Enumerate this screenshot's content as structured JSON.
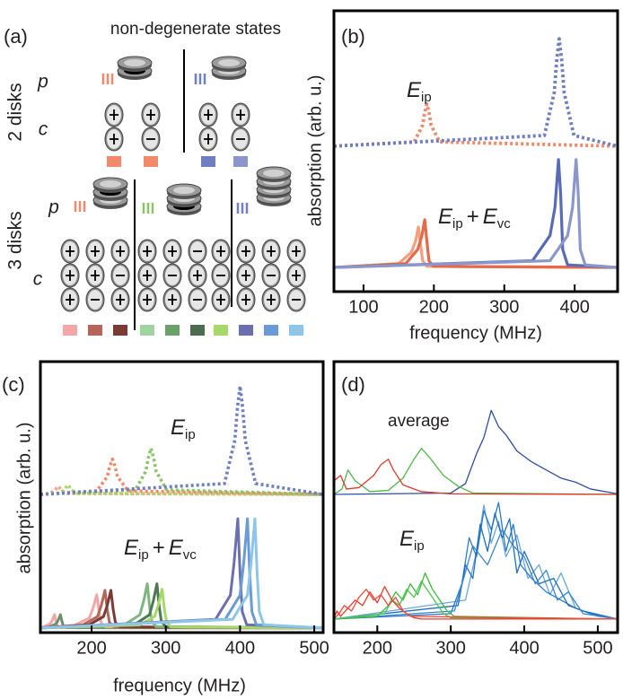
{
  "panel_a": {
    "label": "(a)",
    "title": "non-degenerate states",
    "rows": [
      "2 disks",
      "3 disks"
    ],
    "p": "p",
    "c": "c"
  },
  "chart_data": [
    {
      "type": "line",
      "label": "(b)",
      "ylabel": "absorption (arb. u.)",
      "xlabel": "frequency (MHz)",
      "xlim": [
        58,
        461
      ],
      "ylim": [
        0,
        1
      ],
      "xticks": [
        100,
        200,
        300,
        400
      ],
      "annotations": [
        {
          "parts": [
            {
              "text": "E"
            },
            {
              "text": "ip",
              "sub": true
            }
          ]
        },
        {
          "parts": [
            {
              "text": "E"
            },
            {
              "text": "ip",
              "sub": true
            },
            {
              "text": "+"
            },
            {
              "text": "E"
            },
            {
              "text": "vc",
              "sub": true
            }
          ]
        }
      ],
      "series": [
        {
          "color": "#f08a6a",
          "dashed": true,
          "x": [
            58,
            172,
            184,
            187,
            190,
            193,
            196,
            208,
            461
          ],
          "values": [
            0.518,
            0.533,
            0.593,
            0.638,
            0.668,
            0.638,
            0.593,
            0.533,
            0.518
          ]
        },
        {
          "color": "#6f7fc0",
          "dashed": true,
          "x": [
            58,
            357,
            371,
            374.5,
            378,
            381.5,
            385,
            399,
            461
          ],
          "values": [
            0.518,
            0.556,
            0.709,
            0.824,
            0.9,
            0.824,
            0.709,
            0.556,
            0.518
          ]
        },
        {
          "color": "#f4a07f",
          "dashed": false,
          "x": [
            58,
            150,
            168,
            174,
            178,
            181,
            184,
            190,
            461
          ],
          "values": [
            0.086,
            0.1,
            0.14,
            0.18,
            0.23,
            0.17,
            0.11,
            0.09,
            0.086
          ]
        },
        {
          "color": "#e8694a",
          "dashed": false,
          "x": [
            58,
            160,
            177,
            183,
            187,
            190,
            193,
            199,
            461
          ],
          "values": [
            0.086,
            0.1,
            0.15,
            0.2,
            0.256,
            0.18,
            0.11,
            0.09,
            0.086
          ]
        },
        {
          "color": "#5a6bb5",
          "dashed": false,
          "x": [
            58,
            340,
            365,
            372,
            377,
            380,
            383,
            390,
            461
          ],
          "values": [
            0.086,
            0.11,
            0.2,
            0.3,
            0.47,
            0.35,
            0.15,
            0.095,
            0.086
          ]
        },
        {
          "color": "#8a97cc",
          "dashed": false,
          "x": [
            58,
            365,
            390,
            397,
            402,
            405,
            408,
            415,
            461
          ],
          "values": [
            0.086,
            0.11,
            0.2,
            0.3,
            0.47,
            0.35,
            0.15,
            0.095,
            0.086
          ]
        }
      ]
    },
    {
      "type": "line",
      "label": "(c)",
      "ylabel": "absorption (arb. u.)",
      "xlabel": "frequency (MHz)",
      "xlim": [
        131,
        512
      ],
      "ylim": [
        0,
        1
      ],
      "xticks": [
        200,
        300,
        400,
        500
      ],
      "annotations": [
        {
          "parts": [
            {
              "text": "E"
            },
            {
              "text": "ip",
              "sub": true
            }
          ]
        },
        {
          "parts": [
            {
              "text": "E"
            },
            {
              "text": "ip",
              "sub": true
            },
            {
              "text": "+"
            },
            {
              "text": "E"
            },
            {
              "text": "vc",
              "sub": true
            }
          ]
        }
      ],
      "series": [
        {
          "color": "#f4a582",
          "dashed": true,
          "x": [
            131,
            143,
            151,
            153,
            155,
            157,
            159,
            167,
            512
          ],
          "values": [
            0.51,
            0.513,
            0.525,
            0.534,
            0.54,
            0.534,
            0.525,
            0.513,
            0.51
          ]
        },
        {
          "color": "#a6d96a",
          "dashed": true,
          "x": [
            131,
            156,
            164,
            166,
            168,
            170,
            172,
            180,
            512
          ],
          "values": [
            0.51,
            0.514,
            0.528,
            0.538,
            0.545,
            0.538,
            0.528,
            0.514,
            0.51
          ]
        },
        {
          "color": "#f08a6a",
          "dashed": true,
          "x": [
            131,
            207,
            221,
            224.5,
            228,
            231.5,
            235,
            249,
            512
          ],
          "values": [
            0.51,
            0.523,
            0.575,
            0.614,
            0.64,
            0.614,
            0.575,
            0.523,
            0.51
          ]
        },
        {
          "color": "#8cc46a",
          "dashed": true,
          "x": [
            131,
            259,
            273,
            276.5,
            280,
            283.5,
            287,
            301,
            512
          ],
          "values": [
            0.51,
            0.527,
            0.595,
            0.646,
            0.68,
            0.646,
            0.595,
            0.527,
            0.51
          ]
        },
        {
          "color": "#6f7fc0",
          "dashed": true,
          "x": [
            131,
            379,
            393,
            396.5,
            400,
            403.5,
            407,
            421,
            512
          ],
          "values": [
            0.51,
            0.55,
            0.71,
            0.83,
            0.91,
            0.83,
            0.71,
            0.55,
            0.51
          ]
        },
        {
          "color": "#f4a6a6",
          "dashed": false,
          "x": [
            131,
            135,
            144,
            147,
            150,
            152,
            154,
            158,
            512
          ],
          "values": [
            0.017,
            0.021,
            0.032,
            0.046,
            0.066,
            0.042,
            0.024,
            0.018,
            0.017
          ]
        },
        {
          "color": "#6b8f6b",
          "dashed": false,
          "x": [
            131,
            143,
            152,
            155,
            158,
            160,
            162,
            166,
            512
          ],
          "values": [
            0.017,
            0.021,
            0.032,
            0.046,
            0.066,
            0.042,
            0.024,
            0.018,
            0.017
          ]
        },
        {
          "color": "#f4a6a6",
          "dashed": false,
          "x": [
            131,
            177,
            197,
            202,
            207,
            210,
            213,
            219,
            512
          ],
          "values": [
            0.017,
            0.027,
            0.054,
            0.091,
            0.14,
            0.079,
            0.035,
            0.021,
            0.017
          ]
        },
        {
          "color": "#b5665a",
          "dashed": false,
          "x": [
            131,
            188,
            208,
            213,
            218,
            221,
            224,
            230,
            512
          ],
          "values": [
            0.017,
            0.028,
            0.059,
            0.1,
            0.156,
            0.087,
            0.038,
            0.021,
            0.017
          ]
        },
        {
          "color": "#7a3b36",
          "dashed": false,
          "x": [
            131,
            196,
            216,
            221,
            226,
            229,
            232,
            238,
            512
          ],
          "values": [
            0.017,
            0.028,
            0.059,
            0.1,
            0.156,
            0.087,
            0.038,
            0.021,
            0.017
          ]
        },
        {
          "color": "#7fb57f",
          "dashed": false,
          "x": [
            131,
            245,
            265,
            270,
            275,
            278,
            281,
            287,
            512
          ],
          "values": [
            0.017,
            0.03,
            0.066,
            0.115,
            0.18,
            0.099,
            0.041,
            0.022,
            0.017
          ]
        },
        {
          "color": "#4d7a55",
          "dashed": false,
          "x": [
            131,
            258,
            278,
            283,
            288,
            291,
            294,
            300,
            512
          ],
          "values": [
            0.017,
            0.03,
            0.066,
            0.115,
            0.18,
            0.099,
            0.041,
            0.022,
            0.017
          ]
        },
        {
          "color": "#a6d96a",
          "dashed": false,
          "x": [
            131,
            265,
            285,
            290,
            295,
            298,
            301,
            307,
            512
          ],
          "values": [
            0.017,
            0.028,
            0.06,
            0.103,
            0.16,
            0.089,
            0.038,
            0.021,
            0.017
          ]
        },
        {
          "color": "#6b6fb0",
          "dashed": false,
          "x": [
            131,
            367,
            387,
            392,
            397,
            400,
            403,
            409,
            512
          ],
          "values": [
            0.017,
            0.049,
            0.138,
            0.259,
            0.42,
            0.219,
            0.077,
            0.029,
            0.017
          ]
        },
        {
          "color": "#6a9bd4",
          "dashed": false,
          "x": [
            131,
            380,
            400,
            405,
            410,
            413,
            416,
            422,
            512
          ],
          "values": [
            0.017,
            0.049,
            0.138,
            0.259,
            0.42,
            0.219,
            0.077,
            0.029,
            0.017
          ]
        },
        {
          "color": "#8ec5ea",
          "dashed": false,
          "x": [
            131,
            390,
            410,
            415,
            420,
            423,
            426,
            432,
            512
          ],
          "values": [
            0.017,
            0.049,
            0.138,
            0.259,
            0.42,
            0.219,
            0.077,
            0.029,
            0.017
          ]
        }
      ]
    },
    {
      "type": "line",
      "label": "(d)",
      "xlim": [
        141,
        527
      ],
      "ylim": [
        0,
        1
      ],
      "xticks": [
        200,
        300,
        400,
        500
      ],
      "annotations": [
        {
          "parts": [
            {
              "text": "average"
            }
          ]
        },
        {
          "parts": [
            {
              "text": "E"
            },
            {
              "text": "ip",
              "sub": true
            }
          ]
        }
      ],
      "series": [
        {
          "color": "#6aa5dc",
          "dashed": false,
          "x": [
            141,
            320,
            335,
            345,
            355,
            365,
            375,
            390,
            405,
            420,
            435,
            450,
            470,
            500,
            527
          ],
          "values": [
            0.05,
            0.12,
            0.3,
            0.47,
            0.33,
            0.41,
            0.28,
            0.36,
            0.2,
            0.25,
            0.14,
            0.22,
            0.09,
            0.06,
            0.05
          ]
        },
        {
          "color": "#2a7bc8",
          "dashed": false,
          "x": [
            141,
            300,
            315,
            325,
            335,
            345,
            355,
            365,
            375,
            385,
            395,
            410,
            430,
            450,
            470,
            490,
            527
          ],
          "values": [
            0.05,
            0.07,
            0.18,
            0.35,
            0.28,
            0.45,
            0.38,
            0.48,
            0.3,
            0.4,
            0.25,
            0.2,
            0.15,
            0.12,
            0.09,
            0.07,
            0.05
          ]
        },
        {
          "color": "#1f6fc0",
          "dashed": false,
          "x": [
            141,
            310,
            320,
            330,
            340,
            350,
            360,
            370,
            380,
            390,
            400,
            420,
            440,
            460,
            480,
            527
          ],
          "values": [
            0.05,
            0.1,
            0.25,
            0.2,
            0.4,
            0.3,
            0.44,
            0.35,
            0.42,
            0.22,
            0.3,
            0.18,
            0.2,
            0.1,
            0.08,
            0.05
          ]
        },
        {
          "color": "#3a86d0",
          "dashed": false,
          "x": [
            141,
            305,
            330,
            350,
            370,
            385,
            400,
            415,
            430,
            445,
            460,
            480,
            527
          ],
          "values": [
            0.05,
            0.08,
            0.32,
            0.25,
            0.38,
            0.32,
            0.28,
            0.18,
            0.23,
            0.12,
            0.15,
            0.07,
            0.05
          ]
        },
        {
          "color": "#3dbb3d",
          "dashed": false,
          "x": [
            141,
            200,
            215,
            225,
            235,
            245,
            255,
            265,
            275,
            285,
            295,
            305,
            527
          ],
          "values": [
            0.05,
            0.06,
            0.1,
            0.15,
            0.12,
            0.18,
            0.14,
            0.22,
            0.16,
            0.12,
            0.08,
            0.06,
            0.05
          ]
        },
        {
          "color": "#4cc84c",
          "dashed": false,
          "x": [
            141,
            210,
            220,
            230,
            240,
            250,
            260,
            270,
            280,
            290,
            300,
            527
          ],
          "values": [
            0.05,
            0.07,
            0.12,
            0.1,
            0.16,
            0.13,
            0.19,
            0.15,
            0.11,
            0.07,
            0.055,
            0.05
          ]
        },
        {
          "color": "#e8392b",
          "dashed": false,
          "x": [
            141,
            145,
            150,
            160,
            170,
            180,
            190,
            200,
            210,
            220,
            230,
            240,
            250,
            260,
            527
          ],
          "values": [
            0.05,
            0.08,
            0.06,
            0.09,
            0.12,
            0.1,
            0.15,
            0.11,
            0.17,
            0.12,
            0.09,
            0.07,
            0.055,
            0.05,
            0.05
          ]
        },
        {
          "color": "#f04a3a",
          "dashed": false,
          "x": [
            141,
            148,
            155,
            165,
            175,
            185,
            195,
            205,
            215,
            225,
            235,
            245,
            527
          ],
          "values": [
            0.05,
            0.07,
            0.1,
            0.08,
            0.13,
            0.16,
            0.12,
            0.14,
            0.1,
            0.13,
            0.08,
            0.06,
            0.05
          ]
        },
        {
          "color": "#2c4fa0",
          "dashed": false,
          "x": [
            141,
            300,
            320,
            335,
            345,
            355,
            365,
            375,
            390,
            410,
            430,
            450,
            470,
            490,
            527
          ],
          "values": [
            0.51,
            0.515,
            0.55,
            0.66,
            0.72,
            0.82,
            0.76,
            0.73,
            0.67,
            0.63,
            0.6,
            0.57,
            0.555,
            0.53,
            0.512
          ]
        },
        {
          "color": "#4db848",
          "dashed": false,
          "x": [
            141,
            152,
            160,
            170,
            190,
            215,
            235,
            250,
            260,
            270,
            290,
            310,
            330,
            527
          ],
          "values": [
            0.51,
            0.53,
            0.6,
            0.56,
            0.52,
            0.525,
            0.57,
            0.64,
            0.68,
            0.65,
            0.58,
            0.54,
            0.515,
            0.51
          ]
        },
        {
          "color": "#e03a2a",
          "dashed": false,
          "x": [
            141,
            150,
            158,
            175,
            195,
            205,
            215,
            222,
            235,
            260,
            300,
            527
          ],
          "values": [
            0.56,
            0.58,
            0.53,
            0.535,
            0.58,
            0.62,
            0.64,
            0.6,
            0.545,
            0.52,
            0.512,
            0.51
          ]
        }
      ]
    }
  ]
}
